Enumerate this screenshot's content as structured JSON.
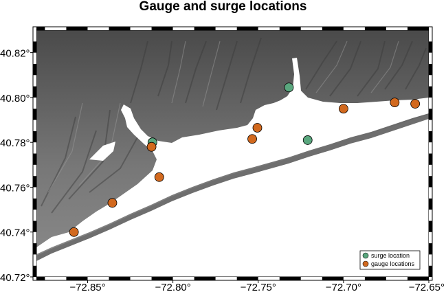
{
  "title": "Gauge and surge locations",
  "x_axis": {
    "range": [
      -72.88,
      -72.65
    ],
    "ticks": [
      -72.85,
      -72.8,
      -72.75,
      -72.7,
      -72.65
    ],
    "tick_labels": [
      "−72.85°",
      "−72.80°",
      "−72.75°",
      "−72.70°",
      "−72.65°"
    ]
  },
  "y_axis": {
    "range": [
      40.72,
      40.83
    ],
    "ticks": [
      40.72,
      40.74,
      40.76,
      40.78,
      40.8,
      40.82
    ],
    "tick_labels": [
      "40.72°",
      "40.74°",
      "40.76°",
      "40.78°",
      "40.80°",
      "40.82°"
    ]
  },
  "legend": {
    "placement": "bottom-right",
    "items": [
      {
        "label": "surge location",
        "color": "#5aa77e"
      },
      {
        "label": "gauge locations",
        "color": "#d2691e"
      }
    ]
  },
  "surge_locations": [
    {
      "lon": -72.812,
      "lat": 40.78
    },
    {
      "lon": -72.732,
      "lat": 40.8045
    },
    {
      "lon": -72.721,
      "lat": 40.781
    }
  ],
  "gauge_locations": [
    {
      "lon": -72.858,
      "lat": 40.74
    },
    {
      "lon": -72.8355,
      "lat": 40.753
    },
    {
      "lon": -72.808,
      "lat": 40.7645
    },
    {
      "lon": -72.8125,
      "lat": 40.778
    },
    {
      "lon": -72.7535,
      "lat": 40.7815
    },
    {
      "lon": -72.7505,
      "lat": 40.7865
    },
    {
      "lon": -72.7,
      "lat": 40.795
    },
    {
      "lon": -72.67,
      "lat": 40.7978
    },
    {
      "lon": -72.658,
      "lat": 40.7972
    }
  ],
  "colors": {
    "land_light": "#8a8a8a",
    "land_dark": "#474747",
    "water": "#ffffff",
    "barrier": "#6e6e6e"
  }
}
